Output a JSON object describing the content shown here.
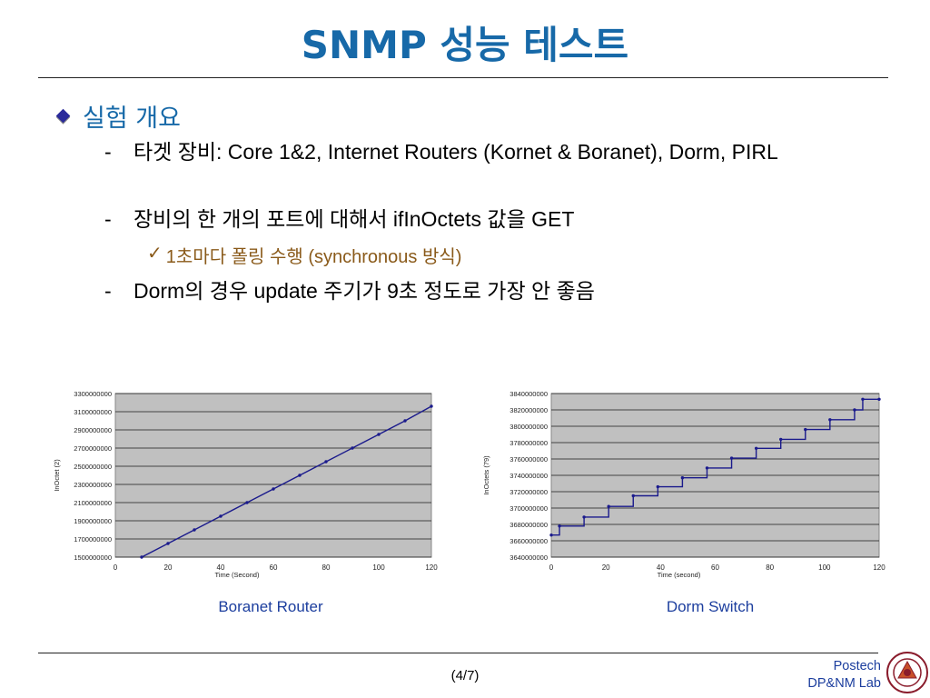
{
  "slide": {
    "title": "SNMP 성능 테스트",
    "heading": "실험 개요",
    "bullets": [
      {
        "dash": "-",
        "text": "타겟 장비: Core 1&2, Internet Routers (Kornet & Boranet), Dorm, PIRL"
      },
      {
        "dash": "-",
        "text": "장비의 한 개의 포트에 대해서 ifInOctets 값을 GET"
      },
      {
        "dash": "-",
        "text": "Dorm의 경우 update 주기가 9초 정도로 가장 안 좋음"
      }
    ],
    "subbullet": {
      "mark": "✓",
      "text": "1초마다 폴링 수행 (synchronous 방식)"
    },
    "footer": {
      "page": "(4/7)",
      "lab_line1": "Postech",
      "lab_line2": "DP&NM Lab"
    }
  },
  "colors": {
    "title": "#1769a8",
    "caption": "#1c3e9e",
    "plot_bg": "#c0c0c0",
    "series": "#1a1a8c",
    "subbullet": "#8a5a1a"
  },
  "chart_data": [
    {
      "type": "line",
      "caption": "Boranet Router",
      "title": "",
      "xlabel": "Time (Second)",
      "ylabel": "InOctet (2)",
      "xlim": [
        0,
        120
      ],
      "ylim": [
        1500000000,
        3300000000
      ],
      "xticks": [
        "0",
        "20",
        "40",
        "60",
        "80",
        "100",
        "120"
      ],
      "yticks": [
        "1500000000",
        "1700000000",
        "1900000000",
        "2100000000",
        "2300000000",
        "2500000000",
        "2700000000",
        "2900000000",
        "3100000000",
        "3300000000"
      ],
      "series": [
        {
          "x": [
            10,
            20,
            30,
            40,
            50,
            60,
            70,
            80,
            90,
            100,
            110,
            120
          ],
          "y": [
            1500000000,
            1650000000,
            1800000000,
            1950000000,
            2100000000,
            2250000000,
            2400000000,
            2550000000,
            2700000000,
            2850000000,
            3000000000,
            3160000000
          ]
        }
      ],
      "grid": true
    },
    {
      "type": "line",
      "caption": "Dorm Switch",
      "title": "",
      "xlabel": "Time (second)",
      "ylabel": "InOctets (79)",
      "xlim": [
        0,
        120
      ],
      "ylim": [
        3640000000,
        3840000000
      ],
      "xticks": [
        "0",
        "20",
        "40",
        "60",
        "80",
        "100",
        "120"
      ],
      "yticks": [
        "3640000000",
        "3660000000",
        "3680000000",
        "3700000000",
        "3720000000",
        "3740000000",
        "3760000000",
        "3780000000",
        "3800000000",
        "3820000000",
        "3840000000"
      ],
      "series": [
        {
          "x": [
            0,
            3,
            12,
            21,
            30,
            39,
            48,
            57,
            66,
            75,
            84,
            93,
            102,
            111,
            114,
            120
          ],
          "y": [
            3667000000,
            3678000000,
            3689000000,
            3702000000,
            3715000000,
            3726000000,
            3737000000,
            3749000000,
            3761000000,
            3773000000,
            3784000000,
            3796000000,
            3808000000,
            3820000000,
            3833000000,
            3833000000
          ]
        }
      ],
      "grid": true
    }
  ]
}
